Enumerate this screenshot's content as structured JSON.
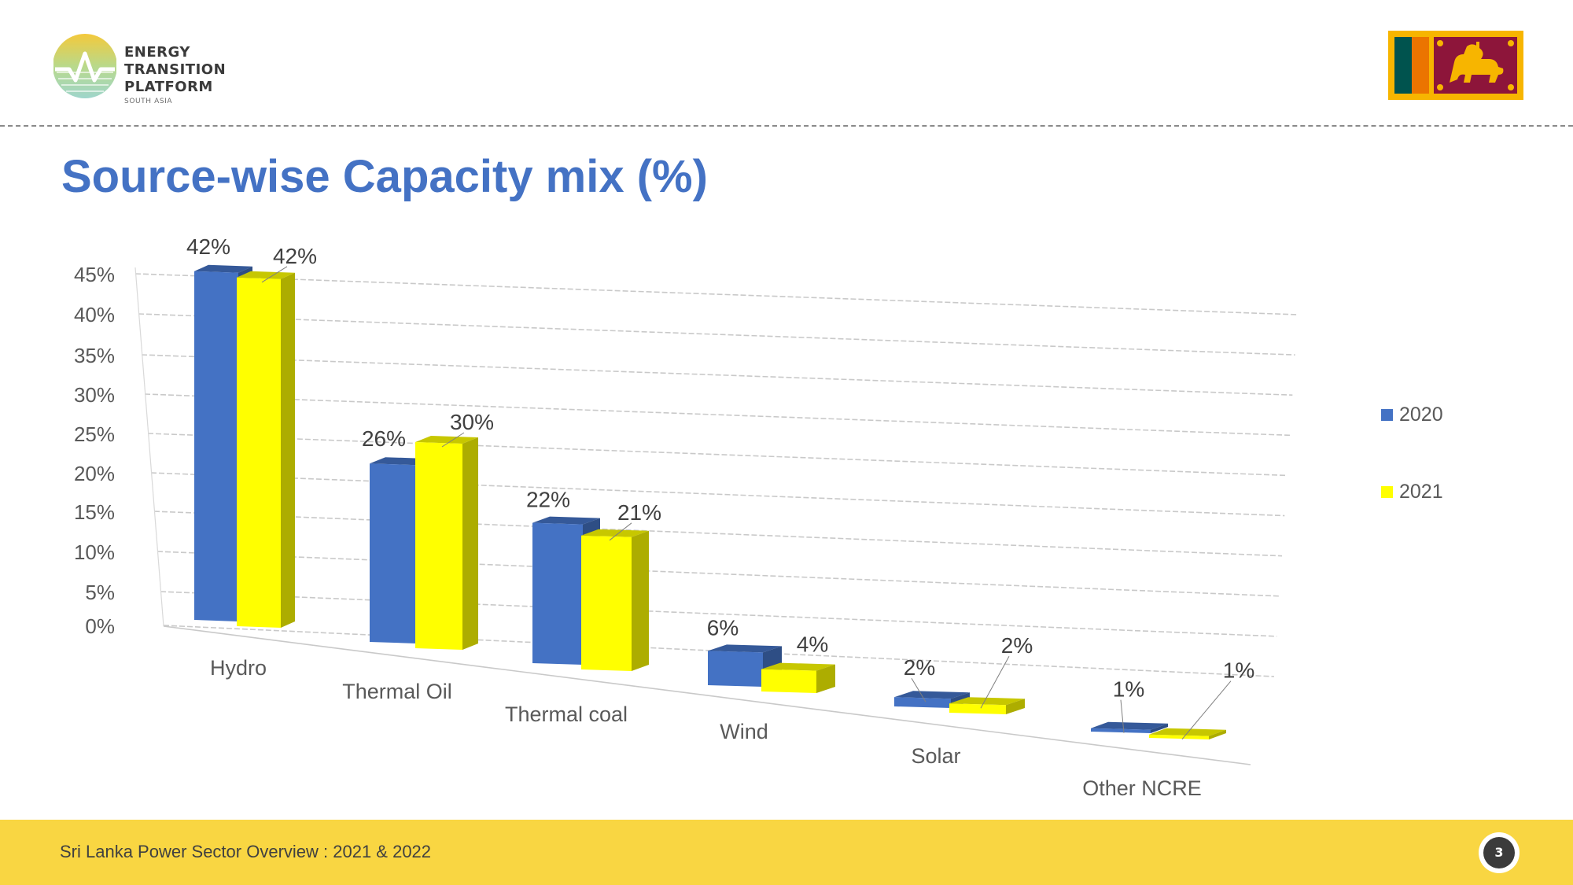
{
  "header": {
    "logo": {
      "line1": "ENERGY TRANSITION",
      "line2": "PLATFORM",
      "subtitle": "SOUTH ASIA"
    },
    "flag": {
      "name": "sri-lanka-flag",
      "colors": {
        "border": "#f7b500",
        "green": "#00534e",
        "orange": "#eb7400",
        "maroon": "#8d153a"
      }
    }
  },
  "title": "Source-wise Capacity mix (%)",
  "chart_data": {
    "type": "bar",
    "title": "Source-wise Capacity mix (%)",
    "categories": [
      "Hydro",
      "Thermal Oil",
      "Thermal coal",
      "Wind",
      "Solar",
      "Other NCRE"
    ],
    "series": [
      {
        "name": "2020",
        "values": [
          42,
          26,
          22,
          6,
          2,
          1
        ],
        "labels": [
          "42%",
          "26%",
          "22%",
          "6%",
          "2%",
          "1%"
        ],
        "color": "#4472c4"
      },
      {
        "name": "2021",
        "values": [
          42,
          30,
          21,
          4,
          2,
          1
        ],
        "labels": [
          "42%",
          "30%",
          "21%",
          "4%",
          "2%",
          "1%"
        ],
        "color": "#ffff00"
      }
    ],
    "yticks": [
      "0%",
      "5%",
      "10%",
      "15%",
      "20%",
      "25%",
      "30%",
      "35%",
      "40%",
      "45%"
    ],
    "ylim": [
      0,
      45
    ],
    "xlabel": "",
    "ylabel": "",
    "grid": true,
    "legend": "right"
  },
  "footer": {
    "text": "Sri Lanka Power Sector Overview : 2021 & 2022",
    "page_number": "3"
  }
}
